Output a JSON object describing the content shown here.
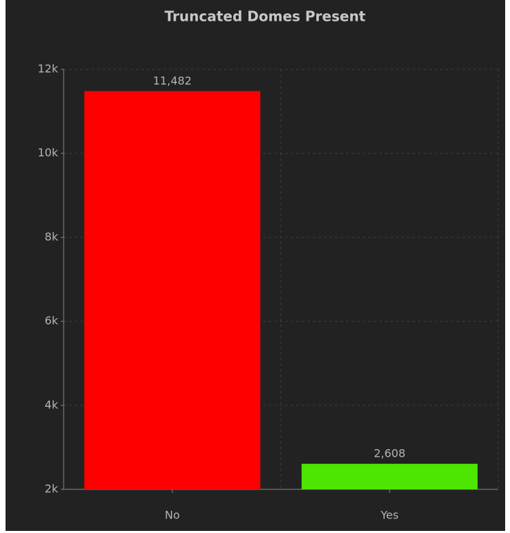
{
  "chart_data": {
    "type": "bar",
    "title": "Truncated Domes Present",
    "categories": [
      "No",
      "Yes"
    ],
    "values": [
      11482,
      2608
    ],
    "value_labels": [
      "11,482",
      "2,608"
    ],
    "colors": [
      "#ff0000",
      "#4ce600"
    ],
    "ylim": [
      2000,
      12000
    ],
    "yticks": [
      {
        "value": 2000,
        "label": "2k"
      },
      {
        "value": 4000,
        "label": "4k"
      },
      {
        "value": 6000,
        "label": "6k"
      },
      {
        "value": 8000,
        "label": "8k"
      },
      {
        "value": 10000,
        "label": "10k"
      },
      {
        "value": 12000,
        "label": "12k"
      }
    ],
    "grid": true
  }
}
